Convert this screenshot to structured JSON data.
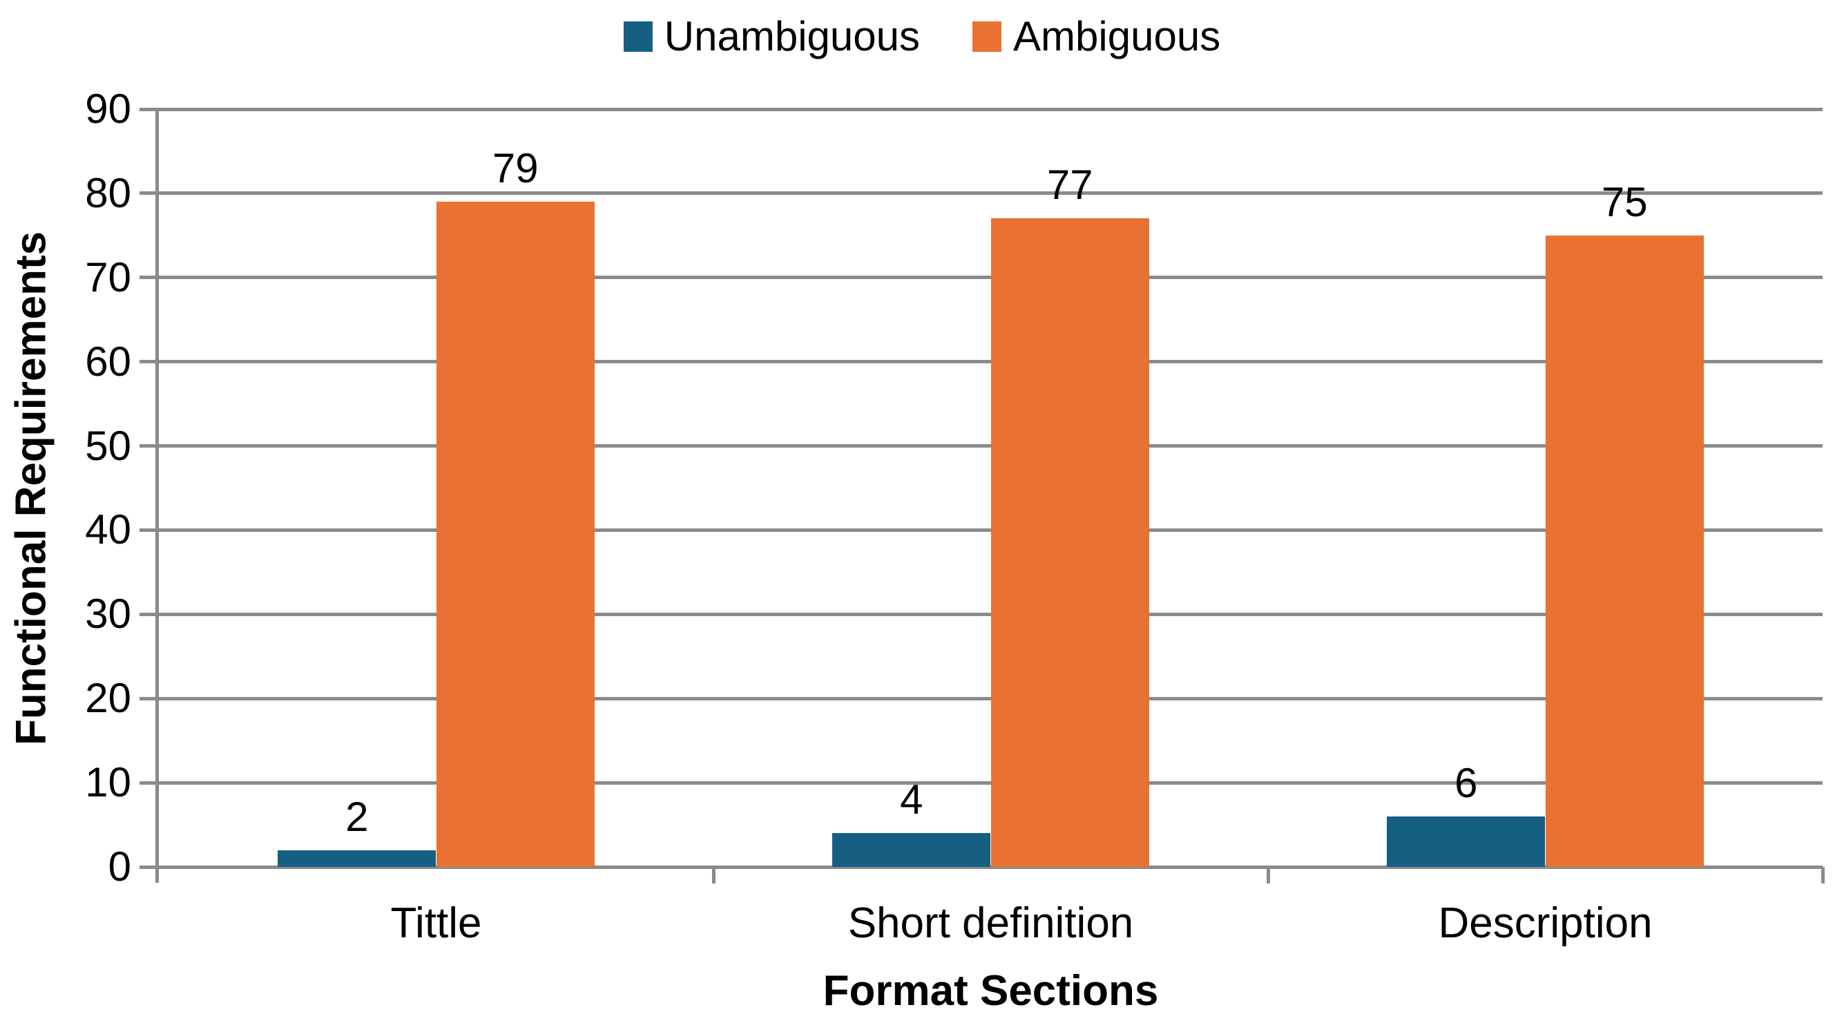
{
  "chart_data": {
    "type": "bar",
    "title": "",
    "categories": [
      "Tittle",
      "Short definition",
      "Description"
    ],
    "series": [
      {
        "name": "Unambiguous",
        "color": "#156082",
        "values": [
          2,
          4,
          6
        ]
      },
      {
        "name": "Ambiguous",
        "color": "#E97132",
        "values": [
          79,
          77,
          75
        ]
      }
    ],
    "data_labels": [
      [
        "2",
        "4",
        "6"
      ],
      [
        "79",
        "77",
        "75"
      ]
    ],
    "xlabel": "Format Sections",
    "ylabel": "Functional Requirements",
    "ylim": [
      0,
      90
    ],
    "ytick_step": 10,
    "yticks": [
      "0",
      "10",
      "20",
      "30",
      "40",
      "50",
      "60",
      "70",
      "80",
      "90"
    ],
    "grid": true,
    "legend_position": "top",
    "bar_gap_ratio": 1.5
  },
  "colors": {
    "grid": "#8a8a8a",
    "axis": "#8a8a8a",
    "text": "#000000",
    "background": "#ffffff"
  }
}
